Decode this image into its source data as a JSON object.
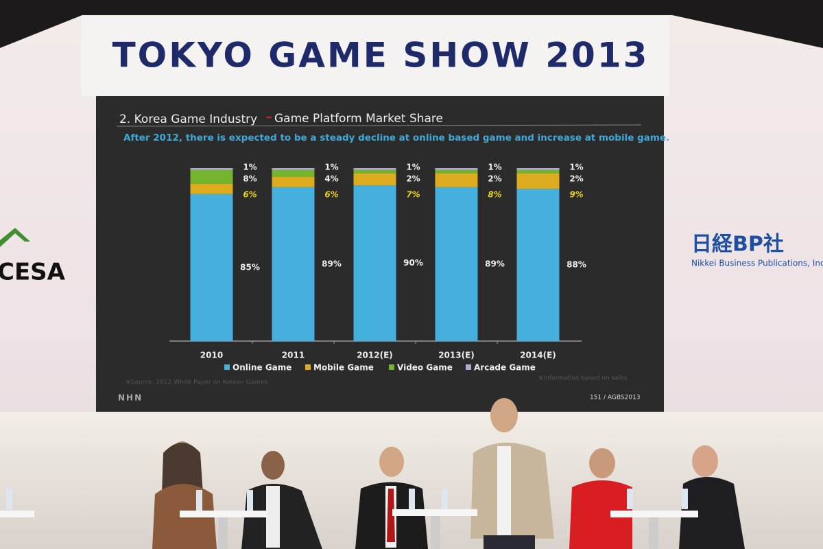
{
  "banner": {
    "title": "TOKYO GAME SHOW 2013"
  },
  "left_logo": "CESA",
  "right_logo": {
    "name": "日経BP社",
    "caption": "Nikkei Business Publications, Inc"
  },
  "slide": {
    "logo": "NHN",
    "source": "※Source: 2012 White Paper on Korean Games",
    "footnote": "※Information based on sales",
    "page": "151 / AGBS2013"
  },
  "chart_data": {
    "type": "bar",
    "stacked": true,
    "title": "2. Korea Game Industry",
    "subtitle": "Game Platform Market Share",
    "description": "After 2012, there is expected to be a steady decline at online based game and increase at mobile game.",
    "categories": [
      "2010",
      "2011",
      "2012(E)",
      "2013(E)",
      "2014(E)"
    ],
    "ylim": [
      0,
      100
    ],
    "series": [
      {
        "name": "Online Game",
        "color": "#45b0de",
        "values": [
          85,
          89,
          90,
          89,
          88
        ],
        "value_labels": [
          "85%",
          "89%",
          "90%",
          "89%",
          "88%"
        ]
      },
      {
        "name": "Mobile Game",
        "color": "#dcac1e",
        "values": [
          6,
          6,
          7,
          8,
          9
        ],
        "value_labels": [
          "6%",
          "6%",
          "7%",
          "8%",
          "9%"
        ]
      },
      {
        "name": "Video Game",
        "color": "#74b32e",
        "values": [
          8,
          4,
          2,
          2,
          2
        ],
        "value_labels": [
          "8%",
          "4%",
          "2%",
          "2%",
          "2%"
        ]
      },
      {
        "name": "Arcade Game",
        "color": "#b4a6d6",
        "values": [
          1,
          1,
          1,
          1,
          1
        ],
        "value_labels": [
          "1%",
          "1%",
          "1%",
          "1%",
          "1%"
        ]
      }
    ]
  }
}
